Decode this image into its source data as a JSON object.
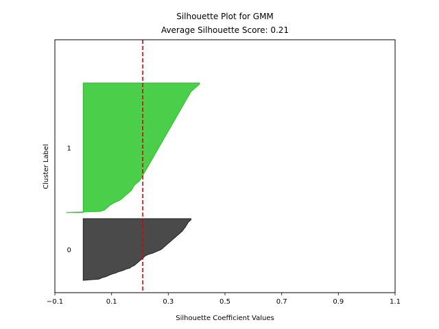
{
  "chart_data": {
    "type": "area",
    "title": "Silhouette Plot for GMM",
    "subtitle": "Average Silhouette Score: 0.21",
    "xlabel": "Silhouette Coefficient Values",
    "ylabel": "Cluster Label",
    "xlim": [
      -0.1,
      1.1
    ],
    "ylim": [
      0,
      205
    ],
    "xticks": [
      -0.1,
      0.1,
      0.3,
      0.5,
      0.7,
      0.9,
      1.1
    ],
    "xtick_labels": [
      "−0.1",
      "0.1",
      "0.3",
      "0.5",
      "0.7",
      "0.9",
      "1.1"
    ],
    "yticks": [],
    "grid": false,
    "average_score": 0.21,
    "average_line_color": "#dd0000",
    "clusters": [
      {
        "label": "0",
        "y_start": 10,
        "y_end": 60,
        "color": "#4a4a4a",
        "edge_color": "#222222",
        "sorted_coefficients": [
          [
            10,
            0.0
          ],
          [
            11,
            0.055
          ],
          [
            12,
            0.065
          ],
          [
            13,
            0.08
          ],
          [
            14,
            0.09
          ],
          [
            15,
            0.1
          ],
          [
            16,
            0.115
          ],
          [
            17,
            0.125
          ],
          [
            18,
            0.14
          ],
          [
            19,
            0.15
          ],
          [
            20,
            0.165
          ],
          [
            21,
            0.17
          ],
          [
            22,
            0.18
          ],
          [
            23,
            0.185
          ],
          [
            24,
            0.19
          ],
          [
            25,
            0.195
          ],
          [
            26,
            0.2
          ],
          [
            27,
            0.205
          ],
          [
            28,
            0.21
          ],
          [
            29,
            0.215
          ],
          [
            30,
            0.22
          ],
          [
            31,
            0.23
          ],
          [
            32,
            0.245
          ],
          [
            33,
            0.255
          ],
          [
            34,
            0.265
          ],
          [
            35,
            0.275
          ],
          [
            36,
            0.28
          ],
          [
            37,
            0.285
          ],
          [
            38,
            0.29
          ],
          [
            39,
            0.295
          ],
          [
            40,
            0.3
          ],
          [
            41,
            0.305
          ],
          [
            42,
            0.31
          ],
          [
            43,
            0.315
          ],
          [
            44,
            0.32
          ],
          [
            45,
            0.325
          ],
          [
            46,
            0.33
          ],
          [
            47,
            0.335
          ],
          [
            48,
            0.34
          ],
          [
            49,
            0.345
          ],
          [
            50,
            0.35
          ],
          [
            51,
            0.353
          ],
          [
            52,
            0.356
          ],
          [
            53,
            0.36
          ],
          [
            54,
            0.362
          ],
          [
            55,
            0.365
          ],
          [
            56,
            0.368
          ],
          [
            57,
            0.37
          ],
          [
            58,
            0.375
          ],
          [
            59,
            0.38
          ],
          [
            60,
            0.38
          ]
        ]
      },
      {
        "label": "1",
        "y_start": 65,
        "y_end": 170,
        "color": "#4bcf4b",
        "edge_color": "#2db82d",
        "sorted_coefficients": [
          [
            65,
            -0.06
          ],
          [
            65.5,
            0.0
          ],
          [
            66,
            0.06
          ],
          [
            67,
            0.075
          ],
          [
            69,
            0.085
          ],
          [
            71,
            0.095
          ],
          [
            73,
            0.11
          ],
          [
            75,
            0.13
          ],
          [
            77,
            0.14
          ],
          [
            79,
            0.15
          ],
          [
            81,
            0.16
          ],
          [
            83,
            0.17
          ],
          [
            85,
            0.175
          ],
          [
            87,
            0.18
          ],
          [
            89,
            0.19
          ],
          [
            91,
            0.2
          ],
          [
            93,
            0.205
          ],
          [
            95,
            0.21
          ],
          [
            97,
            0.215
          ],
          [
            99,
            0.22
          ],
          [
            101,
            0.225
          ],
          [
            103,
            0.23
          ],
          [
            105,
            0.235
          ],
          [
            107,
            0.24
          ],
          [
            109,
            0.245
          ],
          [
            111,
            0.25
          ],
          [
            113,
            0.255
          ],
          [
            115,
            0.26
          ],
          [
            117,
            0.265
          ],
          [
            119,
            0.27
          ],
          [
            121,
            0.275
          ],
          [
            123,
            0.28
          ],
          [
            125,
            0.285
          ],
          [
            127,
            0.29
          ],
          [
            129,
            0.295
          ],
          [
            131,
            0.3
          ],
          [
            133,
            0.305
          ],
          [
            135,
            0.31
          ],
          [
            137,
            0.315
          ],
          [
            139,
            0.32
          ],
          [
            141,
            0.325
          ],
          [
            143,
            0.33
          ],
          [
            145,
            0.335
          ],
          [
            147,
            0.34
          ],
          [
            149,
            0.345
          ],
          [
            151,
            0.35
          ],
          [
            153,
            0.355
          ],
          [
            155,
            0.36
          ],
          [
            157,
            0.365
          ],
          [
            159,
            0.37
          ],
          [
            161,
            0.375
          ],
          [
            163,
            0.38
          ],
          [
            165,
            0.39
          ],
          [
            167,
            0.4
          ],
          [
            169,
            0.41
          ],
          [
            170,
            0.41
          ]
        ]
      }
    ]
  }
}
